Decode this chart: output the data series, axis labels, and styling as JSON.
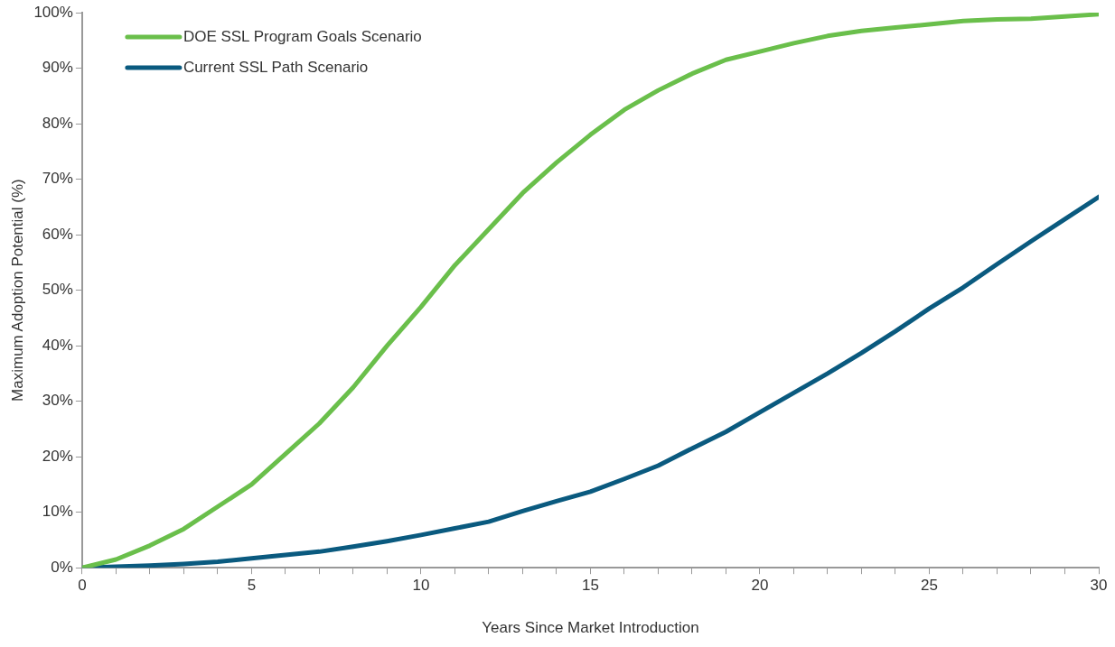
{
  "chart_data": {
    "type": "line",
    "xlabel": "Years Since Market Introduction",
    "ylabel": "Maximum Adoption Potential (%)",
    "x": [
      0,
      1,
      2,
      3,
      4,
      5,
      6,
      7,
      8,
      9,
      10,
      11,
      12,
      13,
      14,
      15,
      16,
      17,
      18,
      19,
      20,
      21,
      22,
      23,
      24,
      25,
      26,
      27,
      28,
      29,
      30
    ],
    "series": [
      {
        "name": "DOE SSL Program Goals Scenario",
        "color": "#6abf4b",
        "values": [
          0,
          1.5,
          4,
          7,
          11,
          15,
          20.5,
          26,
          32.5,
          40,
          47,
          54.5,
          61,
          67.5,
          73,
          78,
          82.5,
          86,
          89,
          91.5,
          93,
          94.5,
          95.8,
          96.7,
          97.3,
          97.9,
          98.5,
          98.8,
          98.9,
          99.3,
          99.7
        ]
      },
      {
        "name": "Current SSL Path Scenario",
        "color": "#0a5a7f",
        "values": [
          0,
          0.2,
          0.4,
          0.7,
          1.1,
          1.7,
          2.3,
          2.9,
          3.8,
          4.8,
          5.9,
          7.1,
          8.3,
          10.2,
          12,
          13.7,
          16,
          18.4,
          21.5,
          24.5,
          28,
          31.5,
          35,
          38.7,
          42.6,
          46.7,
          50.5,
          54.7,
          58.8,
          62.8,
          66.8
        ]
      }
    ],
    "xlim": [
      0,
      30
    ],
    "xticks": [
      0,
      {
        "value": 1,
        "label": null
      },
      {
        "value": 2,
        "label": null
      },
      {
        "value": 3,
        "label": null
      },
      {
        "value": 4,
        "label": null
      },
      5,
      {
        "value": 6,
        "label": null
      },
      {
        "value": 7,
        "label": null
      },
      {
        "value": 8,
        "label": null
      },
      {
        "value": 9,
        "label": null
      },
      10,
      {
        "value": 11,
        "label": null
      },
      {
        "value": 12,
        "label": null
      },
      {
        "value": 13,
        "label": null
      },
      {
        "value": 14,
        "label": null
      },
      15,
      {
        "value": 16,
        "label": null
      },
      {
        "value": 17,
        "label": null
      },
      {
        "value": 18,
        "label": null
      },
      {
        "value": 19,
        "label": null
      },
      20,
      {
        "value": 21,
        "label": null
      },
      {
        "value": 22,
        "label": null
      },
      {
        "value": 23,
        "label": null
      },
      {
        "value": 24,
        "label": null
      },
      25,
      {
        "value": 26,
        "label": null
      },
      {
        "value": 27,
        "label": null
      },
      {
        "value": 28,
        "label": null
      },
      {
        "value": 29,
        "label": null
      },
      30
    ],
    "ylim": [
      0,
      100
    ],
    "yticks": [
      {
        "value": 0,
        "label": "0%"
      },
      {
        "value": 10,
        "label": "10%"
      },
      {
        "value": 20,
        "label": "20%"
      },
      {
        "value": 30,
        "label": "30%"
      },
      {
        "value": 40,
        "label": "40%"
      },
      {
        "value": 50,
        "label": "50%"
      },
      {
        "value": 60,
        "label": "60%"
      },
      {
        "value": 70,
        "label": "70%"
      },
      {
        "value": 80,
        "label": "80%"
      },
      {
        "value": 90,
        "label": "90%"
      },
      {
        "value": 100,
        "label": "100%"
      }
    ],
    "grid": false,
    "legend": "top left",
    "marker": "none",
    "line_style": "solid"
  }
}
